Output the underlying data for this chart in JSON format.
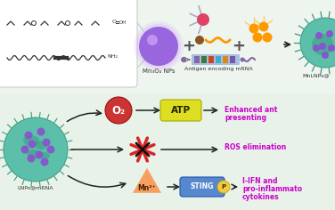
{
  "bg_color": "#eef4ee",
  "top_box_color": "#ffffff",
  "mn_circle_color": "#9966DD",
  "mn_circle_glow": "#CC99FF",
  "mn_label": "Mn₃O₄ NPs",
  "antigen_label": "Antigen encoding mRNA",
  "mnlnp_label": "MnLNPs@",
  "left_label": "LNPs@mRNA",
  "teal_color": "#5BBFAA",
  "teal_dark": "#3A9980",
  "purple_dot": "#8855CC",
  "o2_circle_color": "#CC3333",
  "o2_label": "O₂",
  "atp_fill": "#DDDD22",
  "atp_label": "ATP",
  "ros_color": "#CC2222",
  "mn2_triangle_color": "#F5A060",
  "mn2_label": "Mn²⁺",
  "sting_fill": "#5588CC",
  "sting_label": "STING",
  "p_fill": "#F5C842",
  "p_label": "P",
  "text_color": "#CC00CC",
  "arrow_color": "#222222",
  "chemical_color": "#333333",
  "pink_dot": "#DD4466",
  "orange_color": "#FF9900",
  "brown_dot": "#885522",
  "blue_mrna": "#88AADD"
}
